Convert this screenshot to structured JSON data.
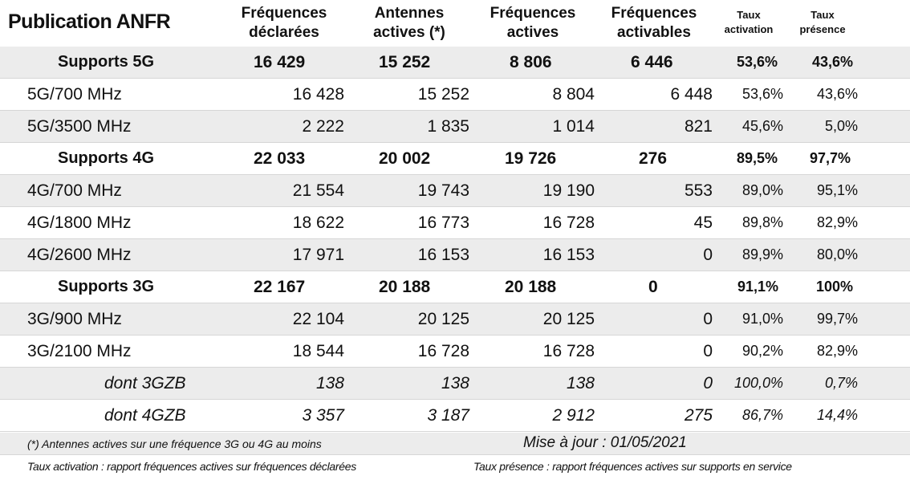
{
  "title": "Publication ANFR",
  "headers": {
    "freq_declarees": [
      "Fréquences",
      "déclarées"
    ],
    "antennes_actives": [
      "Antennes",
      "actives (*)"
    ],
    "freq_actives": [
      "Fréquences",
      "actives"
    ],
    "freq_activables": [
      "Fréquences",
      "activables"
    ],
    "taux_activation": [
      "Taux",
      "activation"
    ],
    "taux_presence": [
      "Taux",
      "présence"
    ]
  },
  "rows": [
    {
      "label": "Supports 5G",
      "declarees": "16 429",
      "antennes": "15 252",
      "actives": "8 806",
      "activables": "6 446",
      "activation": "53,6%",
      "presence": "43,6%"
    },
    {
      "label": "5G/700 MHz",
      "declarees": "16 428",
      "antennes": "15 252",
      "actives": "8 804",
      "activables": "6 448",
      "activation": "53,6%",
      "presence": "43,6%"
    },
    {
      "label": "5G/3500 MHz",
      "declarees": "2 222",
      "antennes": "1 835",
      "actives": "1 014",
      "activables": "821",
      "activation": "45,6%",
      "presence": "5,0%"
    },
    {
      "label": "Supports 4G",
      "declarees": "22 033",
      "antennes": "20 002",
      "actives": "19 726",
      "activables": "276",
      "activation": "89,5%",
      "presence": "97,7%"
    },
    {
      "label": "4G/700 MHz",
      "declarees": "21 554",
      "antennes": "19 743",
      "actives": "19 190",
      "activables": "553",
      "activation": "89,0%",
      "presence": "95,1%"
    },
    {
      "label": "4G/1800 MHz",
      "declarees": "18 622",
      "antennes": "16 773",
      "actives": "16 728",
      "activables": "45",
      "activation": "89,8%",
      "presence": "82,9%"
    },
    {
      "label": "4G/2600 MHz",
      "declarees": "17 971",
      "antennes": "16 153",
      "actives": "16 153",
      "activables": "0",
      "activation": "89,9%",
      "presence": "80,0%"
    },
    {
      "label": "Supports 3G",
      "declarees": "22 167",
      "antennes": "20 188",
      "actives": "20 188",
      "activables": "0",
      "activation": "91,1%",
      "presence": "100%"
    },
    {
      "label": "3G/900 MHz",
      "declarees": "22 104",
      "antennes": "20 125",
      "actives": "20 125",
      "activables": "0",
      "activation": "91,0%",
      "presence": "99,7%"
    },
    {
      "label": "3G/2100 MHz",
      "declarees": "18 544",
      "antennes": "16 728",
      "actives": "16 728",
      "activables": "0",
      "activation": "90,2%",
      "presence": "82,9%"
    },
    {
      "label": "dont 3GZB",
      "declarees": "138",
      "antennes": "138",
      "actives": "138",
      "activables": "0",
      "activation": "100,0%",
      "presence": "0,7%"
    },
    {
      "label": "dont 4GZB",
      "declarees": "3 357",
      "antennes": "3 187",
      "actives": "2 912",
      "activables": "275",
      "activation": "86,7%",
      "presence": "14,4%"
    }
  ],
  "footer": {
    "note": "(*) Antennes actives sur une fréquence 3G ou 4G au moins",
    "mise_a_jour": "Mise à jour :  01/05/2021",
    "def_activation": "Taux activation : rapport fréquences actives sur fréquences déclarées",
    "def_presence": "Taux présence : rapport fréquences actives sur supports en service"
  }
}
